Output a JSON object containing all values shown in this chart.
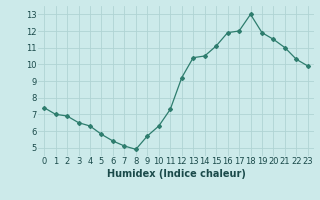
{
  "x": [
    0,
    1,
    2,
    3,
    4,
    5,
    6,
    7,
    8,
    9,
    10,
    11,
    12,
    13,
    14,
    15,
    16,
    17,
    18,
    19,
    20,
    21,
    22,
    23
  ],
  "y": [
    7.4,
    7.0,
    6.9,
    6.5,
    6.3,
    5.8,
    5.4,
    5.1,
    4.9,
    5.7,
    6.3,
    7.3,
    9.2,
    10.4,
    10.5,
    11.1,
    11.9,
    12.0,
    13.0,
    11.9,
    11.5,
    11.0,
    10.3,
    9.9
  ],
  "line_color": "#2e7d6e",
  "marker": "D",
  "markersize": 2.0,
  "bg_color": "#cceaea",
  "grid_color": "#b0d4d4",
  "xlabel": "Humidex (Indice chaleur)",
  "xlim": [
    -0.5,
    23.5
  ],
  "ylim": [
    4.5,
    13.5
  ],
  "yticks": [
    5,
    6,
    7,
    8,
    9,
    10,
    11,
    12,
    13
  ],
  "xticks": [
    0,
    1,
    2,
    3,
    4,
    5,
    6,
    7,
    8,
    9,
    10,
    11,
    12,
    13,
    14,
    15,
    16,
    17,
    18,
    19,
    20,
    21,
    22,
    23
  ],
  "xlabel_fontsize": 7,
  "tick_fontsize": 6,
  "label_color": "#1a4a4a"
}
